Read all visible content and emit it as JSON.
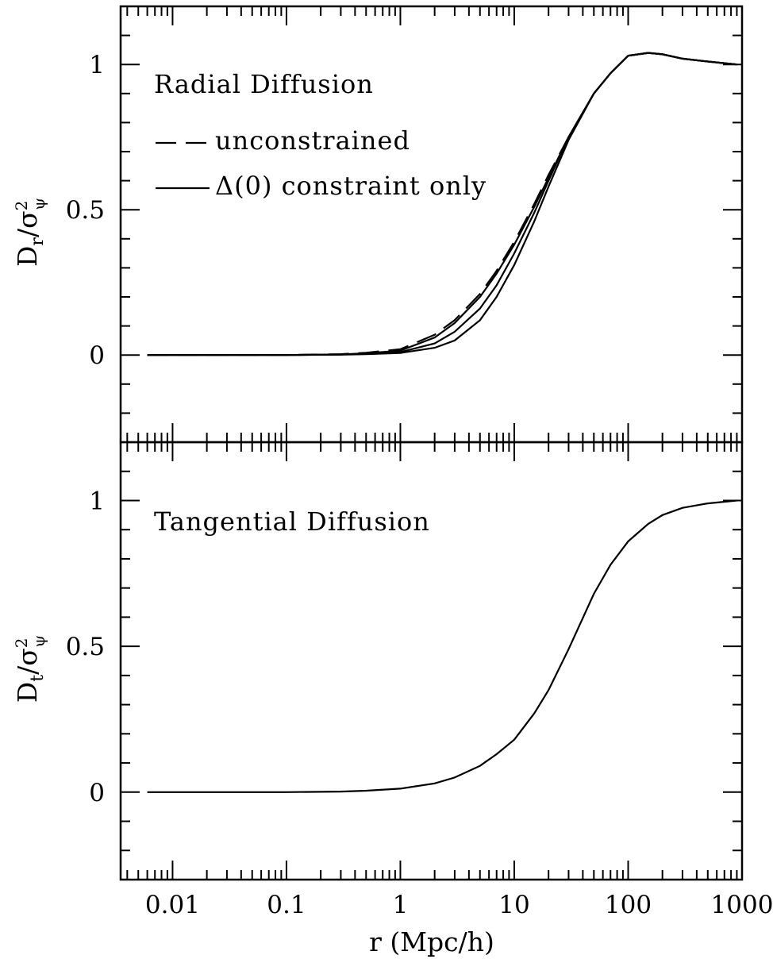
{
  "chart_data": [
    {
      "type": "line",
      "title": "Radial Diffusion",
      "ylabel_main": "D",
      "ylabel_sub": "r",
      "ylabel_den": "/σ",
      "ylabel_sup": "2",
      "ylabel_den_sub": "ψ",
      "xlabel": "",
      "xscale": "log",
      "xlim": [
        0.0035,
        1000
      ],
      "ylim": [
        -0.3,
        1.2
      ],
      "yticks": [
        "0",
        "0.5",
        "1"
      ],
      "xticks_shown": false,
      "legend": [
        {
          "label": "unconstrained",
          "style": "dashed"
        },
        {
          "label": "Δ(0) constraint only",
          "style": "solid"
        }
      ],
      "series": [
        {
          "name": "unconstrained",
          "style": "dashed",
          "x": [
            0.006,
            0.1,
            0.3,
            0.5,
            1,
            2,
            3,
            5,
            7,
            10,
            15,
            20,
            30,
            50,
            70,
            100,
            150,
            200,
            300,
            500,
            900
          ],
          "y": [
            0,
            0,
            0.003,
            0.008,
            0.02,
            0.07,
            0.12,
            0.21,
            0.29,
            0.39,
            0.52,
            0.62,
            0.75,
            0.9,
            0.97,
            1.03,
            1.04,
            1.035,
            1.02,
            1.01,
            1.0
          ]
        },
        {
          "name": "Δ(0) constraint only",
          "style": "solid",
          "x": [
            0.006,
            0.1,
            0.3,
            0.5,
            1,
            2,
            3,
            5,
            7,
            10,
            15,
            20,
            30,
            50,
            70,
            100,
            150,
            200,
            300,
            500,
            900
          ],
          "y": [
            0,
            0,
            0.002,
            0.006,
            0.015,
            0.06,
            0.11,
            0.2,
            0.28,
            0.38,
            0.51,
            0.61,
            0.75,
            0.9,
            0.97,
            1.03,
            1.04,
            1.035,
            1.02,
            1.01,
            1.0
          ]
        },
        {
          "style": "solid",
          "x": [
            0.006,
            0.1,
            0.3,
            0.5,
            1,
            2,
            3,
            5,
            7,
            10,
            15,
            20,
            30,
            50,
            70,
            100,
            150,
            200,
            300,
            500,
            900
          ],
          "y": [
            0,
            0,
            0.002,
            0.004,
            0.01,
            0.04,
            0.08,
            0.16,
            0.24,
            0.35,
            0.49,
            0.6,
            0.75,
            0.9,
            0.97,
            1.03,
            1.04,
            1.035,
            1.02,
            1.01,
            1.0
          ]
        },
        {
          "style": "solid",
          "x": [
            0.006,
            0.1,
            0.3,
            0.5,
            1,
            2,
            3,
            5,
            7,
            10,
            15,
            20,
            30,
            50,
            70,
            100,
            150,
            200,
            300,
            500,
            900
          ],
          "y": [
            0,
            0,
            0.001,
            0.003,
            0.007,
            0.025,
            0.05,
            0.12,
            0.2,
            0.31,
            0.46,
            0.58,
            0.74,
            0.9,
            0.97,
            1.03,
            1.04,
            1.035,
            1.02,
            1.01,
            1.0
          ]
        }
      ]
    },
    {
      "type": "line",
      "title": "Tangential Diffusion",
      "ylabel_main": "D",
      "ylabel_sub": "t",
      "ylabel_den": "/σ",
      "ylabel_sup": "2",
      "ylabel_den_sub": "ψ",
      "xlabel": "r (Mpc/h)",
      "xscale": "log",
      "xlim": [
        0.0035,
        1000
      ],
      "ylim": [
        -0.3,
        1.2
      ],
      "yticks": [
        "0",
        "0.5",
        "1"
      ],
      "xticks": [
        "0.01",
        "0.1",
        "1",
        "10",
        "100",
        "1000"
      ],
      "xtick_values": [
        0.01,
        0.1,
        1,
        10,
        100,
        1000
      ],
      "series": [
        {
          "style": "solid",
          "x": [
            0.006,
            0.1,
            0.3,
            0.5,
            1,
            2,
            3,
            5,
            7,
            10,
            15,
            20,
            30,
            50,
            70,
            100,
            150,
            200,
            300,
            500,
            900
          ],
          "y": [
            0,
            0,
            0.002,
            0.005,
            0.012,
            0.03,
            0.05,
            0.09,
            0.13,
            0.18,
            0.27,
            0.35,
            0.49,
            0.68,
            0.78,
            0.86,
            0.92,
            0.95,
            0.975,
            0.99,
            1.0
          ]
        }
      ]
    }
  ]
}
